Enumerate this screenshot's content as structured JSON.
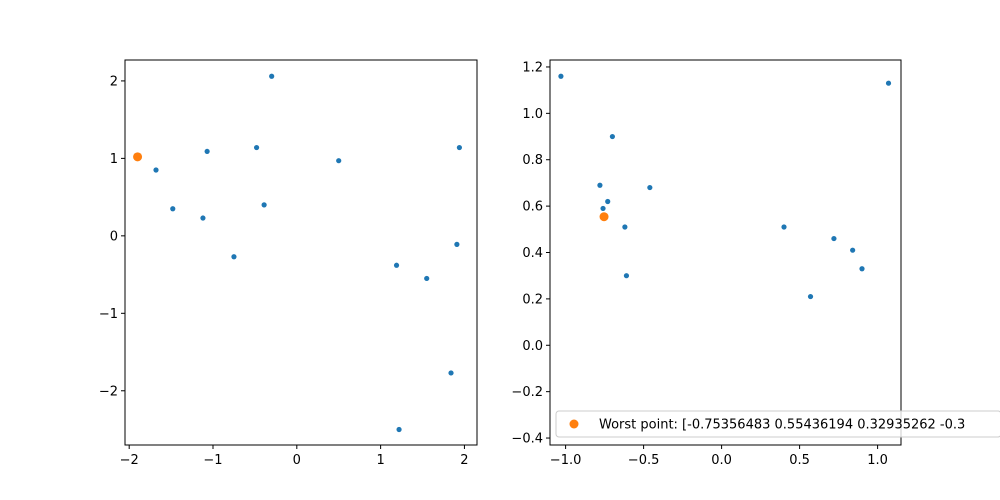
{
  "chart_data": [
    {
      "type": "scatter",
      "xlim": [
        -2.05,
        2.15
      ],
      "ylim": [
        -2.7,
        2.27
      ],
      "xticks": [
        -2,
        -1,
        0,
        1,
        2
      ],
      "xtick_labels": [
        "−2",
        "−1",
        "0",
        "1",
        "2"
      ],
      "yticks": [
        -2,
        -1,
        0,
        1,
        2
      ],
      "ytick_labels": [
        "−2",
        "−1",
        "0",
        "1",
        "2"
      ],
      "grid": false,
      "series": [
        {
          "color": "#1f77b4",
          "marker_size": "small",
          "points": [
            [
              -0.3,
              2.06
            ],
            [
              -1.68,
              0.85
            ],
            [
              -1.07,
              1.09
            ],
            [
              -0.48,
              1.14
            ],
            [
              0.5,
              0.97
            ],
            [
              1.94,
              1.14
            ],
            [
              -1.48,
              0.35
            ],
            [
              -1.12,
              0.23
            ],
            [
              -0.39,
              0.4
            ],
            [
              -0.75,
              -0.27
            ],
            [
              1.19,
              -0.38
            ],
            [
              1.55,
              -0.55
            ],
            [
              1.91,
              -0.11
            ],
            [
              1.84,
              -1.77
            ],
            [
              1.22,
              -2.5
            ]
          ]
        },
        {
          "color": "#ff7f0e",
          "marker_size": "large",
          "points": [
            [
              -1.9,
              1.02
            ]
          ]
        }
      ]
    },
    {
      "type": "scatter",
      "xlim": [
        -1.1,
        1.15
      ],
      "ylim": [
        -0.43,
        1.23
      ],
      "xticks": [
        -1.0,
        -0.5,
        0.0,
        0.5,
        1.0
      ],
      "xtick_labels": [
        "−1.0",
        "−0.5",
        "0.0",
        "0.5",
        "1.0"
      ],
      "yticks": [
        -0.4,
        -0.2,
        0.0,
        0.2,
        0.4,
        0.6,
        0.8,
        1.0,
        1.2
      ],
      "ytick_labels": [
        "−0.4",
        "−0.2",
        "0.0",
        "0.2",
        "0.4",
        "0.6",
        "0.8",
        "1.0",
        "1.2"
      ],
      "grid": false,
      "legend": {
        "location": "lower-left"
      },
      "series": [
        {
          "color": "#1f77b4",
          "marker_size": "small",
          "points": [
            [
              -1.03,
              1.16
            ],
            [
              -0.7,
              0.9
            ],
            [
              -0.78,
              0.69
            ],
            [
              -0.73,
              0.62
            ],
            [
              -0.76,
              0.59
            ],
            [
              -0.46,
              0.68
            ],
            [
              -0.62,
              0.51
            ],
            [
              -0.61,
              0.3
            ],
            [
              0.4,
              0.51
            ],
            [
              0.72,
              0.46
            ],
            [
              0.84,
              0.41
            ],
            [
              0.9,
              0.33
            ],
            [
              0.57,
              0.21
            ],
            [
              1.07,
              1.13
            ]
          ]
        },
        {
          "name": "Worst point: [-0.75356483  0.55436194  0.32935262 -0.3",
          "color": "#ff7f0e",
          "marker_size": "large",
          "points": [
            [
              -0.75356483,
              0.55436194
            ]
          ]
        }
      ]
    }
  ]
}
